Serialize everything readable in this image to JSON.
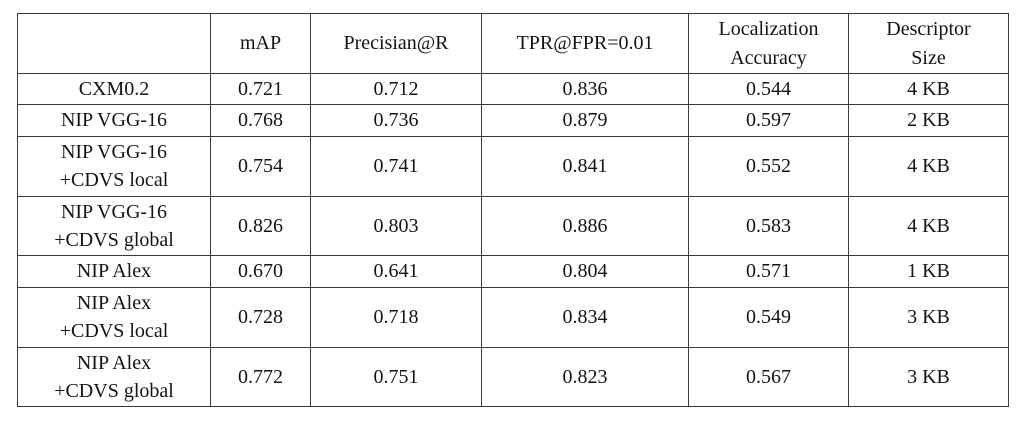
{
  "table": {
    "columns": [
      "",
      "mAP",
      "Precisian@R",
      "TPR@FPR=0.01",
      "Localization\nAccuracy",
      "Descriptor\nSize"
    ],
    "rows": [
      {
        "label": "CXM0.2",
        "cells": [
          {
            "v": "0.721",
            "b": false
          },
          {
            "v": "0.712",
            "b": false
          },
          {
            "v": "0.836",
            "b": false
          },
          {
            "v": "0.544",
            "b": false
          },
          {
            "v": "4 KB",
            "b": false
          }
        ]
      },
      {
        "label": "NIP VGG-16",
        "cells": [
          {
            "v": "0.768",
            "b": false
          },
          {
            "v": "0.736",
            "b": false
          },
          {
            "v": "0.879",
            "b": false
          },
          {
            "v": "0.597",
            "b": true
          },
          {
            "v": "2 KB",
            "b": false
          }
        ]
      },
      {
        "label": "NIP VGG-16\n+CDVS local",
        "cells": [
          {
            "v": "0.754",
            "b": false
          },
          {
            "v": "0.741",
            "b": false
          },
          {
            "v": "0.841",
            "b": false
          },
          {
            "v": "0.552",
            "b": false
          },
          {
            "v": "4 KB",
            "b": false
          }
        ]
      },
      {
        "label": "NIP VGG-16\n+CDVS global",
        "cells": [
          {
            "v": "0.826",
            "b": true
          },
          {
            "v": "0.803",
            "b": true
          },
          {
            "v": "0.886",
            "b": true
          },
          {
            "v": "0.583",
            "b": false
          },
          {
            "v": "4 KB",
            "b": false
          }
        ]
      },
      {
        "label": "NIP Alex",
        "cells": [
          {
            "v": "0.670",
            "b": false
          },
          {
            "v": "0.641",
            "b": false
          },
          {
            "v": "0.804",
            "b": false
          },
          {
            "v": "0.571",
            "b": false
          },
          {
            "v": "1 KB",
            "b": false
          }
        ]
      },
      {
        "label": "NIP Alex\n+CDVS local",
        "cells": [
          {
            "v": "0.728",
            "b": false
          },
          {
            "v": "0.718",
            "b": false
          },
          {
            "v": "0.834",
            "b": false
          },
          {
            "v": "0.549",
            "b": false
          },
          {
            "v": "3 KB",
            "b": false
          }
        ]
      },
      {
        "label": "NIP Alex\n+CDVS global",
        "cells": [
          {
            "v": "0.772",
            "b": false
          },
          {
            "v": "0.751",
            "b": false
          },
          {
            "v": "0.823",
            "b": false
          },
          {
            "v": "0.567",
            "b": false
          },
          {
            "v": "3 KB",
            "b": false
          }
        ]
      }
    ]
  }
}
